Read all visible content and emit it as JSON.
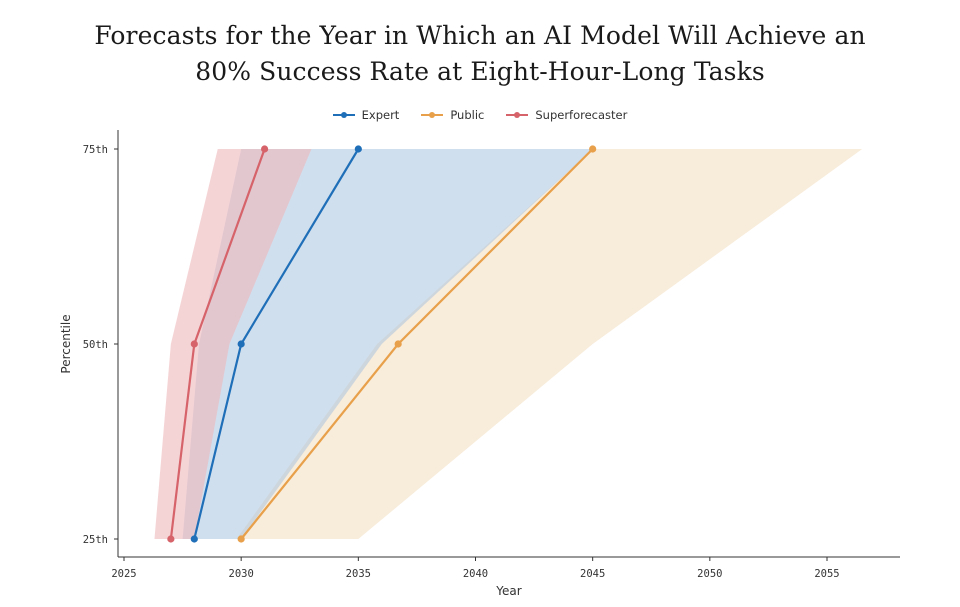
{
  "chart_data": {
    "type": "line",
    "title_lines": [
      "Forecasts for the Year in Which an AI Model Will Achieve an",
      "80% Success Rate at Eight-Hour-Long Tasks"
    ],
    "xlabel": "Year",
    "ylabel": "Percentile",
    "xlim": [
      2025,
      2058
    ],
    "x_ticks": [
      2025,
      2030,
      2035,
      2040,
      2045,
      2050,
      2055
    ],
    "y_categories": [
      "25th",
      "50th",
      "75th"
    ],
    "grid": false,
    "legend_position": "top-center",
    "series": [
      {
        "name": "Expert",
        "color": "#1f6fb8",
        "fill": "#a9c4e0",
        "points": [
          [
            2028,
            "25th"
          ],
          [
            2030,
            "50th"
          ],
          [
            2035,
            "75th"
          ]
        ],
        "band_lower": [
          2027.5,
          2028.2,
          2030.0
        ],
        "band_upper": [
          2030.0,
          2036.0,
          2045.0
        ]
      },
      {
        "name": "Public",
        "color": "#e8a04a",
        "fill": "#f3dcbb",
        "points": [
          [
            2030,
            "25th"
          ],
          [
            2036.7,
            "50th"
          ],
          [
            2045,
            "75th"
          ]
        ],
        "band_lower": [
          2029.8,
          2035.8,
          2045.0
        ],
        "band_upper": [
          2035.0,
          2045.0,
          2056.5
        ]
      },
      {
        "name": "Superforecaster",
        "color": "#d6636a",
        "fill": "#eeb7bb",
        "points": [
          [
            2027,
            "25th"
          ],
          [
            2028,
            "50th"
          ],
          [
            2031,
            "75th"
          ]
        ],
        "band_lower": [
          2026.3,
          2027.0,
          2029.0
        ],
        "band_upper": [
          2028.0,
          2029.5,
          2033.0
        ]
      }
    ]
  }
}
